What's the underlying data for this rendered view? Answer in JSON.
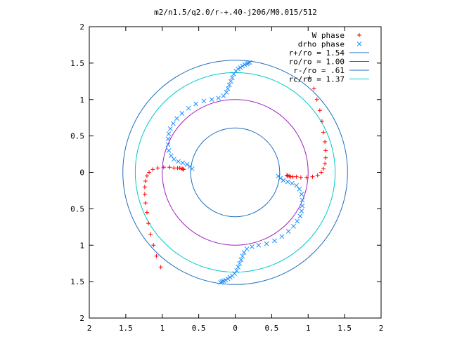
{
  "chart_data": {
    "type": "scatter",
    "title": "m2/n1.5/q2.0/r-+.40-j206/M0.015/512",
    "xlim": [
      -2,
      2
    ],
    "ylim": [
      -2,
      2
    ],
    "x_ticks": [
      -2,
      -1.5,
      -1,
      -0.5,
      0,
      0.5,
      1,
      1.5,
      2
    ],
    "y_ticks": [
      -2,
      -1.5,
      -1,
      -0.5,
      0,
      0.5,
      1,
      1.5,
      2
    ],
    "x_tick_labels": [
      "2",
      "1.5",
      "1",
      "0.5",
      "0",
      "0.5",
      "1",
      "1.5",
      "2"
    ],
    "y_tick_labels": [
      "2",
      "1.5",
      "1",
      "0.5",
      "0",
      "0.5",
      "1",
      "1.5",
      "2"
    ],
    "grid": false,
    "legend_position": "top-right",
    "series": [
      {
        "name": "W phase",
        "kind": "points",
        "marker": "plus",
        "color": "#ff0000",
        "x": [
          1.02,
          1.08,
          1.12,
          1.16,
          1.19,
          1.21,
          1.23,
          1.24,
          1.24,
          1.23,
          1.21,
          1.18,
          1.13,
          1.06,
          0.98,
          0.9,
          0.84,
          0.79,
          0.76,
          0.74,
          0.72,
          0.71,
          0.71,
          -1.02,
          -1.08,
          -1.12,
          -1.16,
          -1.19,
          -1.21,
          -1.23,
          -1.24,
          -1.24,
          -1.23,
          -1.21,
          -1.18,
          -1.13,
          -1.06,
          -0.98,
          -0.9,
          -0.84,
          -0.79,
          -0.76,
          -0.74,
          -0.72,
          -0.71,
          -0.71
        ],
        "y": [
          1.3,
          1.15,
          1.0,
          0.85,
          0.7,
          0.55,
          0.42,
          0.3,
          0.2,
          0.12,
          0.05,
          0.0,
          -0.04,
          -0.06,
          -0.07,
          -0.07,
          -0.06,
          -0.06,
          -0.06,
          -0.05,
          -0.05,
          -0.04,
          -0.04,
          -1.3,
          -1.15,
          -1.0,
          -0.85,
          -0.7,
          -0.55,
          -0.42,
          -0.3,
          -0.2,
          -0.12,
          -0.05,
          0.0,
          0.04,
          0.06,
          0.07,
          0.07,
          0.06,
          0.06,
          0.06,
          0.05,
          0.05,
          0.04,
          0.04
        ]
      },
      {
        "name": "drho phase",
        "kind": "points",
        "marker": "cross",
        "color": "#1e90ff",
        "x": [
          0.59,
          0.62,
          0.66,
          0.72,
          0.78,
          0.84,
          0.88,
          0.91,
          0.92,
          0.92,
          0.91,
          0.89,
          0.85,
          0.8,
          0.73,
          0.64,
          0.54,
          0.43,
          0.32,
          0.23,
          0.16,
          0.12,
          0.1,
          0.08,
          0.06,
          0.04,
          0.02,
          -0.01,
          -0.04,
          -0.07,
          -0.1,
          -0.13,
          -0.16,
          -0.18,
          -0.2,
          -0.59,
          -0.62,
          -0.66,
          -0.72,
          -0.78,
          -0.84,
          -0.88,
          -0.91,
          -0.92,
          -0.92,
          -0.91,
          -0.89,
          -0.85,
          -0.8,
          -0.73,
          -0.64,
          -0.54,
          -0.43,
          -0.32,
          -0.23,
          -0.16,
          -0.12,
          -0.1,
          -0.08,
          -0.06,
          -0.04,
          -0.02,
          0.01,
          0.04,
          0.07,
          0.1,
          0.13,
          0.16,
          0.18,
          0.2
        ],
        "y": [
          -0.05,
          -0.08,
          -0.11,
          -0.13,
          -0.15,
          -0.18,
          -0.23,
          -0.3,
          -0.38,
          -0.46,
          -0.53,
          -0.6,
          -0.67,
          -0.74,
          -0.81,
          -0.88,
          -0.94,
          -0.98,
          -1.0,
          -1.02,
          -1.05,
          -1.1,
          -1.15,
          -1.2,
          -1.25,
          -1.3,
          -1.35,
          -1.39,
          -1.42,
          -1.44,
          -1.46,
          -1.48,
          -1.49,
          -1.5,
          -1.51,
          0.05,
          0.08,
          0.11,
          0.13,
          0.15,
          0.18,
          0.23,
          0.3,
          0.38,
          0.46,
          0.53,
          0.6,
          0.67,
          0.74,
          0.81,
          0.88,
          0.94,
          0.98,
          1.0,
          1.02,
          1.05,
          1.1,
          1.15,
          1.2,
          1.25,
          1.3,
          1.35,
          1.39,
          1.42,
          1.44,
          1.46,
          1.48,
          1.49,
          1.5,
          1.51
        ]
      },
      {
        "name": "r+/ro = 1.54",
        "kind": "circle",
        "radius": 1.54,
        "color": "#1f6fbf"
      },
      {
        "name": "ro/ro = 1.00",
        "kind": "circle",
        "radius": 1.0,
        "color": "#a020c0"
      },
      {
        "name": "r-/ro = .61",
        "kind": "circle",
        "radius": 0.61,
        "color": "#1f6fbf"
      },
      {
        "name": "rc/ro = 1.37",
        "kind": "circle",
        "radius": 1.37,
        "color": "#00c8c8"
      }
    ]
  }
}
